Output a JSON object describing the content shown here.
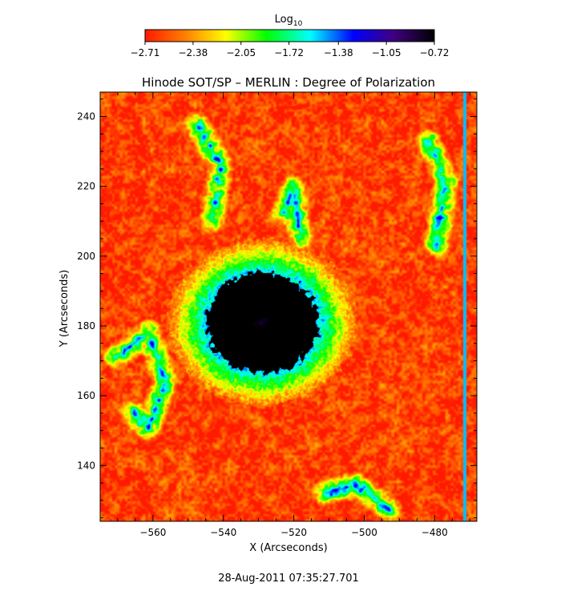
{
  "chart_data": {
    "type": "heatmap",
    "title": "Hinode SOT/SP – MERLIN : Degree of Polarization",
    "xlabel": "X (Arcseconds)",
    "ylabel": "Y (Arcseconds)",
    "xlim": [
      -575,
      -468
    ],
    "ylim": [
      124,
      247
    ],
    "x_ticks": [
      -560,
      -540,
      -520,
      -500,
      -480
    ],
    "y_ticks": [
      140,
      160,
      180,
      200,
      220,
      240
    ],
    "x_tick_labels": [
      "−560",
      "−540",
      "−520",
      "−500",
      "−480"
    ],
    "y_tick_labels": [
      "140",
      "160",
      "180",
      "200",
      "220",
      "240"
    ],
    "colorbar": {
      "label_base": "Log",
      "label_sub": "10",
      "range": [
        -2.71,
        -0.72
      ],
      "ticks": [
        -2.71,
        -2.38,
        -2.05,
        -1.72,
        -1.38,
        -1.05,
        -0.72
      ],
      "tick_labels": [
        "−2.71",
        "−2.38",
        "−2.05",
        "−1.72",
        "−1.38",
        "−1.05",
        "−0.72"
      ],
      "colors": [
        "#ff1a00",
        "#ff8000",
        "#ffff00",
        "#00ff00",
        "#00ffff",
        "#0000ff",
        "#400080",
        "#000000"
      ]
    },
    "sunspot": {
      "x": -529,
      "y": 181,
      "core_value": -0.8
    },
    "vertical_stripe": {
      "x": -471.5,
      "value": -1.5
    },
    "background_value": -2.6,
    "footer_timestamp": "28-Aug-2011 07:35:27.701"
  }
}
